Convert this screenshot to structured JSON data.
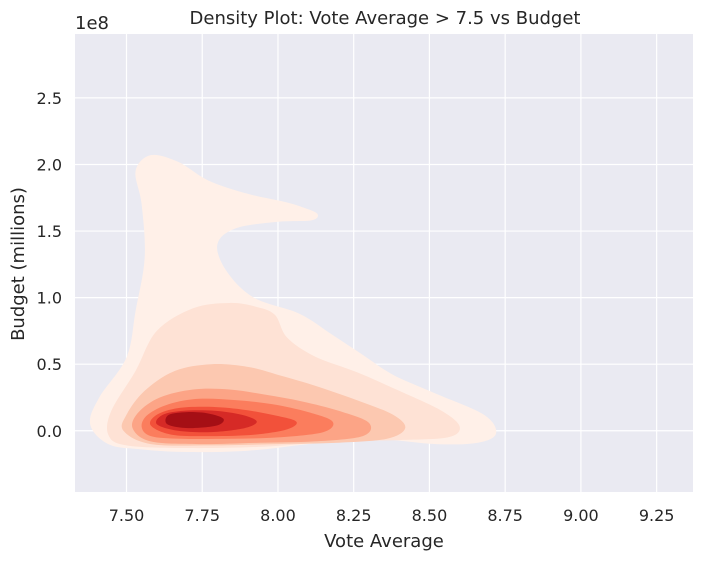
{
  "chart_data": {
    "type": "kde-density",
    "title": "Density Plot: Vote Average > 7.5 vs Budget",
    "xlabel": "Vote Average",
    "ylabel": "Budget (millions)",
    "offset_text": "1e8",
    "xlim": [
      7.33,
      9.37
    ],
    "ylim": [
      -0.46,
      2.98
    ],
    "x_ticks": [
      {
        "value": 7.5,
        "label": "7.50"
      },
      {
        "value": 7.75,
        "label": "7.75"
      },
      {
        "value": 8.0,
        "label": "8.00"
      },
      {
        "value": 8.25,
        "label": "8.25"
      },
      {
        "value": 8.5,
        "label": "8.50"
      },
      {
        "value": 8.75,
        "label": "8.75"
      },
      {
        "value": 9.0,
        "label": "9.00"
      },
      {
        "value": 9.25,
        "label": "9.25"
      }
    ],
    "y_ticks": [
      {
        "value": 0.0,
        "label": "0.0"
      },
      {
        "value": 0.5,
        "label": "0.5"
      },
      {
        "value": 1.0,
        "label": "1.0"
      },
      {
        "value": 1.5,
        "label": "1.5"
      },
      {
        "value": 2.0,
        "label": "2.0"
      },
      {
        "value": 2.5,
        "label": "2.5"
      }
    ],
    "grid": true,
    "colormap": "Reds",
    "background_color": "#eaeaf2",
    "grid_color": "#ffffff",
    "levels": [
      {
        "color": "#fff0e8",
        "points": [
          [
            7.44,
            -0.1
          ],
          [
            7.38,
            0.05
          ],
          [
            7.41,
            0.25
          ],
          [
            7.5,
            0.55
          ],
          [
            7.53,
            0.9
          ],
          [
            7.56,
            1.3
          ],
          [
            7.55,
            1.7
          ],
          [
            7.53,
            1.95
          ],
          [
            7.58,
            2.07
          ],
          [
            7.67,
            2.02
          ],
          [
            7.77,
            1.88
          ],
          [
            7.9,
            1.78
          ],
          [
            8.02,
            1.72
          ],
          [
            8.08,
            1.68
          ],
          [
            8.13,
            1.63
          ],
          [
            8.11,
            1.58
          ],
          [
            8.0,
            1.57
          ],
          [
            7.86,
            1.52
          ],
          [
            7.8,
            1.4
          ],
          [
            7.83,
            1.2
          ],
          [
            7.92,
            1.0
          ],
          [
            8.07,
            0.88
          ],
          [
            8.18,
            0.72
          ],
          [
            8.28,
            0.57
          ],
          [
            8.38,
            0.42
          ],
          [
            8.52,
            0.28
          ],
          [
            8.68,
            0.12
          ],
          [
            8.72,
            -0.02
          ],
          [
            8.66,
            -0.09
          ],
          [
            8.52,
            -0.1
          ],
          [
            8.3,
            -0.06
          ],
          [
            8.1,
            -0.1
          ],
          [
            7.9,
            -0.15
          ],
          [
            7.7,
            -0.16
          ],
          [
            7.55,
            -0.14
          ]
        ]
      },
      {
        "color": "#fee2d5",
        "points": [
          [
            7.44,
            -0.03
          ],
          [
            7.45,
            0.15
          ],
          [
            7.53,
            0.45
          ],
          [
            7.6,
            0.75
          ],
          [
            7.72,
            0.92
          ],
          [
            7.84,
            0.96
          ],
          [
            7.93,
            0.93
          ],
          [
            7.99,
            0.87
          ],
          [
            8.03,
            0.7
          ],
          [
            8.12,
            0.56
          ],
          [
            8.26,
            0.44
          ],
          [
            8.4,
            0.3
          ],
          [
            8.54,
            0.15
          ],
          [
            8.6,
            0.03
          ],
          [
            8.56,
            -0.05
          ],
          [
            8.4,
            -0.07
          ],
          [
            8.2,
            -0.08
          ],
          [
            7.95,
            -0.12
          ],
          [
            7.7,
            -0.13
          ],
          [
            7.5,
            -0.11
          ]
        ]
      },
      {
        "color": "#fcc8b0",
        "points": [
          [
            7.49,
            0.0
          ],
          [
            7.5,
            0.12
          ],
          [
            7.56,
            0.3
          ],
          [
            7.66,
            0.45
          ],
          [
            7.78,
            0.5
          ],
          [
            7.9,
            0.48
          ],
          [
            8.0,
            0.42
          ],
          [
            8.12,
            0.34
          ],
          [
            8.26,
            0.23
          ],
          [
            8.38,
            0.12
          ],
          [
            8.42,
            0.02
          ],
          [
            8.36,
            -0.06
          ],
          [
            8.2,
            -0.09
          ],
          [
            8.0,
            -0.1
          ],
          [
            7.78,
            -0.11
          ],
          [
            7.58,
            -0.1
          ]
        ]
      },
      {
        "color": "#fca486",
        "points": [
          [
            7.52,
            0.02
          ],
          [
            7.54,
            0.14
          ],
          [
            7.61,
            0.25
          ],
          [
            7.72,
            0.31
          ],
          [
            7.84,
            0.31
          ],
          [
            7.96,
            0.27
          ],
          [
            8.08,
            0.22
          ],
          [
            8.2,
            0.15
          ],
          [
            8.3,
            0.06
          ],
          [
            8.28,
            -0.04
          ],
          [
            8.12,
            -0.08
          ],
          [
            7.94,
            -0.09
          ],
          [
            7.74,
            -0.1
          ],
          [
            7.58,
            -0.08
          ]
        ]
      },
      {
        "color": "#fb7d5d",
        "points": [
          [
            7.55,
            0.03
          ],
          [
            7.57,
            0.12
          ],
          [
            7.64,
            0.2
          ],
          [
            7.74,
            0.24
          ],
          [
            7.86,
            0.23
          ],
          [
            7.98,
            0.2
          ],
          [
            8.1,
            0.14
          ],
          [
            8.18,
            0.07
          ],
          [
            8.15,
            -0.01
          ],
          [
            8.0,
            -0.05
          ],
          [
            7.84,
            -0.06
          ],
          [
            7.68,
            -0.06
          ],
          [
            7.58,
            -0.04
          ]
        ]
      },
      {
        "color": "#f2513a",
        "points": [
          [
            7.58,
            0.04
          ],
          [
            7.6,
            0.12
          ],
          [
            7.67,
            0.17
          ],
          [
            7.77,
            0.18
          ],
          [
            7.88,
            0.16
          ],
          [
            7.98,
            0.12
          ],
          [
            8.06,
            0.07
          ],
          [
            8.03,
            0.01
          ],
          [
            7.92,
            -0.03
          ],
          [
            7.78,
            -0.04
          ],
          [
            7.65,
            -0.03
          ]
        ]
      },
      {
        "color": "#d62a26",
        "points": [
          [
            7.6,
            0.05
          ],
          [
            7.62,
            0.12
          ],
          [
            7.69,
            0.15
          ],
          [
            7.79,
            0.15
          ],
          [
            7.88,
            0.12
          ],
          [
            7.93,
            0.07
          ],
          [
            7.89,
            0.02
          ],
          [
            7.78,
            -0.01
          ],
          [
            7.67,
            0.0
          ]
        ]
      },
      {
        "color": "#a50f15",
        "points": [
          [
            7.63,
            0.06
          ],
          [
            7.64,
            0.12
          ],
          [
            7.7,
            0.14
          ],
          [
            7.77,
            0.13
          ],
          [
            7.82,
            0.09
          ],
          [
            7.8,
            0.04
          ],
          [
            7.72,
            0.02
          ],
          [
            7.66,
            0.03
          ]
        ]
      }
    ]
  }
}
